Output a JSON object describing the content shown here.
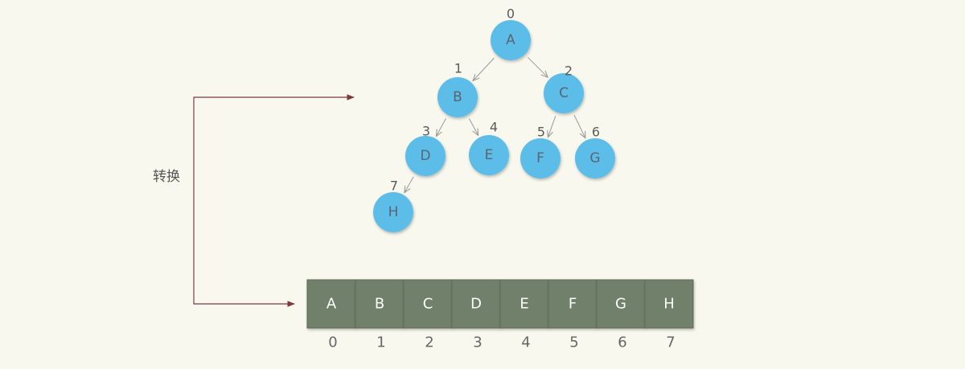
{
  "convert_label": "转换",
  "tree": {
    "nodes": [
      {
        "id": "A",
        "label": "A",
        "index": "0"
      },
      {
        "id": "B",
        "label": "B",
        "index": "1"
      },
      {
        "id": "C",
        "label": "C",
        "index": "2"
      },
      {
        "id": "D",
        "label": "D",
        "index": "3"
      },
      {
        "id": "E",
        "label": "E",
        "index": "4"
      },
      {
        "id": "F",
        "label": "F",
        "index": "5"
      },
      {
        "id": "G",
        "label": "G",
        "index": "6"
      },
      {
        "id": "H",
        "label": "H",
        "index": "7"
      }
    ],
    "edges": [
      {
        "from": "A",
        "to": "B"
      },
      {
        "from": "A",
        "to": "C"
      },
      {
        "from": "B",
        "to": "D"
      },
      {
        "from": "B",
        "to": "E"
      },
      {
        "from": "C",
        "to": "F"
      },
      {
        "from": "C",
        "to": "G"
      },
      {
        "from": "D",
        "to": "H"
      }
    ]
  },
  "array": {
    "cells": [
      "A",
      "B",
      "C",
      "D",
      "E",
      "F",
      "G",
      "H"
    ],
    "indices": [
      "0",
      "1",
      "2",
      "3",
      "4",
      "5",
      "6",
      "7"
    ]
  },
  "colors": {
    "node_fill": "#5bbde9",
    "cell_fill": "#70806a",
    "arrow": "#7a3a3e",
    "background": "#f9f8ee"
  }
}
